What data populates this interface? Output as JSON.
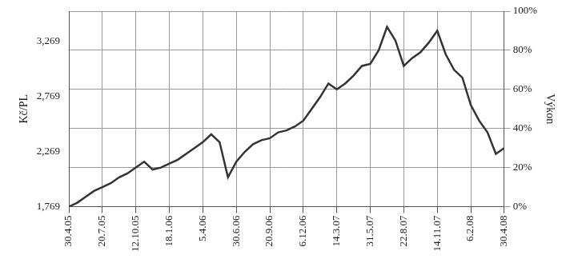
{
  "chart_data": {
    "type": "line",
    "y_label": "Kč/PL",
    "y2_label": "Výkon",
    "categories": [
      "30.4.05",
      null,
      null,
      null,
      "20.7.05",
      null,
      null,
      null,
      "12.10.05",
      null,
      null,
      null,
      "18.1.06",
      null,
      null,
      null,
      "5.4.06",
      null,
      null,
      null,
      "30.6.06",
      null,
      null,
      null,
      "20.9.06",
      null,
      null,
      null,
      "6.12.06",
      null,
      null,
      null,
      "14.3.07",
      null,
      null,
      null,
      "31.5.07",
      null,
      null,
      null,
      "22.8.07",
      null,
      null,
      null,
      "14.11.07",
      null,
      null,
      null,
      "6.2.08",
      null,
      null,
      null,
      "30.4.08"
    ],
    "series": [
      {
        "color": "#333333",
        "axis": "y2",
        "values": [
          0,
          2,
          5,
          8,
          10,
          12,
          15,
          17,
          20,
          23,
          19,
          20,
          22,
          24,
          27,
          30,
          33,
          37,
          33,
          15,
          23,
          28,
          32,
          34,
          35,
          38,
          39,
          41,
          44,
          50,
          56,
          63,
          60,
          63,
          67,
          72,
          73,
          80,
          92,
          85,
          72,
          76,
          79,
          84,
          90,
          78,
          70,
          66,
          52,
          44,
          38,
          27,
          30
        ]
      }
    ],
    "ylim": [
      1.769,
      3.538
    ],
    "yticks": [
      {
        "value": 1.769,
        "label": "1,769"
      },
      {
        "value": 2.269,
        "label": "2,269"
      },
      {
        "value": 2.769,
        "label": "2,769"
      },
      {
        "value": 3.269,
        "label": "3,269"
      }
    ],
    "y2lim": [
      0,
      100
    ],
    "y2ticks": [
      {
        "value": 0,
        "label": "0%"
      },
      {
        "value": 20,
        "label": "20%"
      },
      {
        "value": 40,
        "label": "40%"
      },
      {
        "value": 60,
        "label": "60%"
      },
      {
        "value": 80,
        "label": "80%"
      },
      {
        "value": 100,
        "label": "100%"
      }
    ],
    "grid": true
  }
}
